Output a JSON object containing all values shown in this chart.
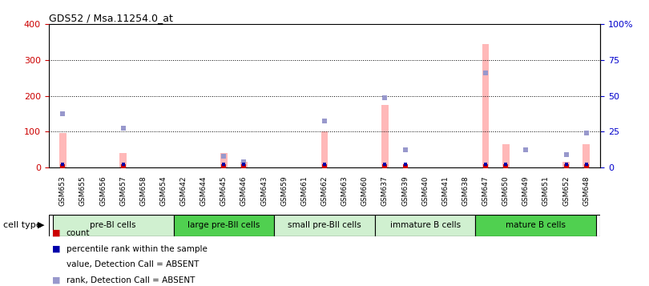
{
  "title": "GDS52 / Msa.11254.0_at",
  "samples": [
    "GSM653",
    "GSM655",
    "GSM656",
    "GSM657",
    "GSM658",
    "GSM654",
    "GSM642",
    "GSM644",
    "GSM645",
    "GSM646",
    "GSM643",
    "GSM659",
    "GSM661",
    "GSM662",
    "GSM663",
    "GSM660",
    "GSM637",
    "GSM639",
    "GSM640",
    "GSM641",
    "GSM638",
    "GSM647",
    "GSM650",
    "GSM649",
    "GSM651",
    "GSM652",
    "GSM648"
  ],
  "pink_bar_values": [
    95,
    0,
    0,
    40,
    0,
    0,
    0,
    0,
    40,
    15,
    0,
    0,
    0,
    100,
    0,
    0,
    175,
    0,
    0,
    0,
    0,
    345,
    65,
    0,
    0,
    15,
    65
  ],
  "blue_square_values": [
    150,
    0,
    0,
    110,
    0,
    0,
    0,
    0,
    30,
    15,
    0,
    0,
    0,
    130,
    0,
    0,
    195,
    50,
    0,
    0,
    0,
    265,
    0,
    50,
    0,
    35,
    95
  ],
  "red_square_values": [
    5,
    0,
    0,
    5,
    0,
    0,
    0,
    0,
    5,
    5,
    0,
    0,
    0,
    5,
    0,
    0,
    5,
    5,
    0,
    0,
    0,
    5,
    5,
    0,
    0,
    5,
    5
  ],
  "dark_blue_square_values": [
    2,
    0,
    0,
    2,
    0,
    0,
    0,
    0,
    2,
    2,
    0,
    0,
    0,
    2,
    0,
    0,
    2,
    2,
    0,
    0,
    0,
    2,
    2,
    0,
    0,
    2,
    2
  ],
  "cell_groups": [
    {
      "label": "pre-BI cells",
      "start": 0,
      "end": 6,
      "color": "#d0f0d0"
    },
    {
      "label": "large pre-BII cells",
      "start": 6,
      "end": 11,
      "color": "#50d050"
    },
    {
      "label": "small pre-BII cells",
      "start": 11,
      "end": 16,
      "color": "#d0f0d0"
    },
    {
      "label": "immature B cells",
      "start": 16,
      "end": 21,
      "color": "#d0f0d0"
    },
    {
      "label": "mature B cells",
      "start": 21,
      "end": 27,
      "color": "#50d050"
    }
  ],
  "ylim_left": [
    0,
    400
  ],
  "ylim_right": [
    0,
    100
  ],
  "yticks_left": [
    0,
    100,
    200,
    300,
    400
  ],
  "yticks_right": [
    0,
    25,
    50,
    75,
    100
  ],
  "ytick_labels_right": [
    "0",
    "25",
    "50",
    "75",
    "100%"
  ],
  "pink_bar_color": "#ffb8b8",
  "blue_square_color": "#9898cc",
  "red_square_color": "#cc0000",
  "dark_blue_square_color": "#0000aa",
  "left_axis_color": "#cc0000",
  "right_axis_color": "#0000cc",
  "background_color": "#ffffff",
  "cell_type_label": "cell type",
  "legend_items": [
    {
      "color": "#cc0000",
      "marker": "s",
      "label": "count"
    },
    {
      "color": "#0000aa",
      "marker": "s",
      "label": "percentile rank within the sample"
    },
    {
      "color": "#ffb8b8",
      "marker": "bar",
      "label": "value, Detection Call = ABSENT"
    },
    {
      "color": "#9898cc",
      "marker": "s",
      "label": "rank, Detection Call = ABSENT"
    }
  ]
}
